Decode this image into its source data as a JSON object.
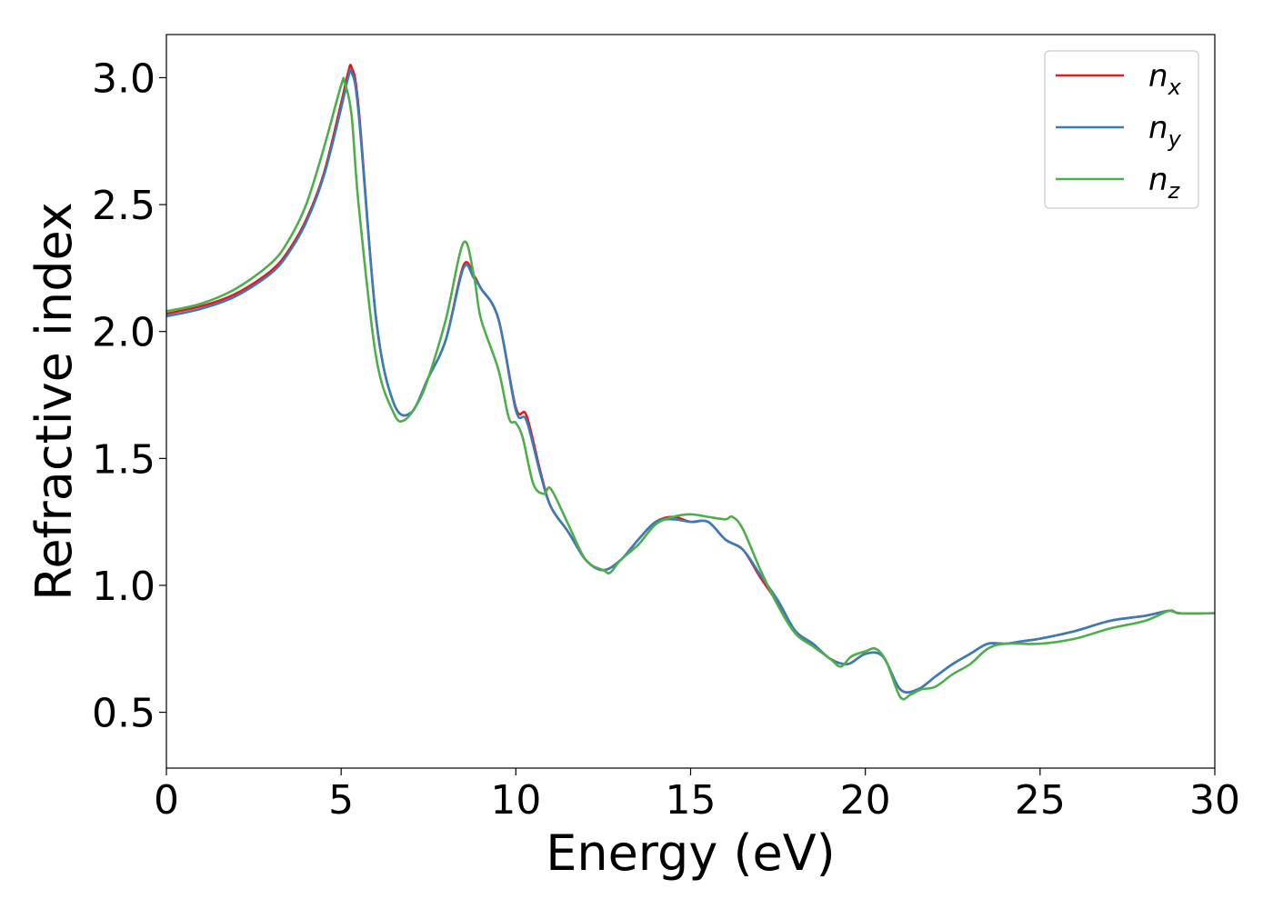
{
  "chart_data": {
    "type": "line",
    "xlabel": "Energy (eV)",
    "ylabel": "Refractive index",
    "xlim": [
      0,
      30
    ],
    "ylim": [
      0.28,
      3.17
    ],
    "xticks": [
      0,
      5,
      10,
      15,
      20,
      25,
      30
    ],
    "xtick_labels": [
      "0",
      "5",
      "10",
      "15",
      "20",
      "25",
      "30"
    ],
    "yticks": [
      0.5,
      1.0,
      1.5,
      2.0,
      2.5,
      3.0
    ],
    "ytick_labels": [
      "0.5",
      "1.0",
      "1.5",
      "2.0",
      "2.5",
      "3.0"
    ],
    "grid": false,
    "legend_position": "top-right",
    "series": [
      {
        "name": "n",
        "subscript": "x",
        "color": "#e41a1c",
        "x": [
          0,
          1,
          2,
          3,
          3.5,
          4,
          4.5,
          5,
          5.2,
          5.3,
          5.5,
          6,
          6.5,
          7,
          7.5,
          8,
          8.5,
          8.8,
          9,
          9.5,
          10,
          10.3,
          10.7,
          11,
          11.5,
          12,
          12.5,
          13,
          13.5,
          14,
          14.5,
          15,
          15.5,
          16,
          16.5,
          17,
          17.5,
          18,
          18.5,
          19,
          19.5,
          20,
          20.5,
          21,
          21.5,
          22,
          22.5,
          23,
          23.5,
          24,
          24.5,
          25,
          26,
          27,
          28,
          28.7,
          29,
          30
        ],
        "y": [
          2.07,
          2.1,
          2.15,
          2.24,
          2.32,
          2.44,
          2.62,
          2.9,
          3.02,
          3.04,
          2.88,
          2.05,
          1.72,
          1.68,
          1.82,
          1.97,
          2.26,
          2.22,
          2.17,
          2.05,
          1.7,
          1.67,
          1.45,
          1.31,
          1.21,
          1.1,
          1.06,
          1.1,
          1.18,
          1.25,
          1.27,
          1.25,
          1.25,
          1.18,
          1.14,
          1.03,
          0.93,
          0.82,
          0.77,
          0.71,
          0.69,
          0.73,
          0.72,
          0.59,
          0.59,
          0.64,
          0.69,
          0.73,
          0.77,
          0.77,
          0.78,
          0.79,
          0.82,
          0.86,
          0.88,
          0.9,
          0.89,
          0.89
        ]
      },
      {
        "name": "n",
        "subscript": "y",
        "color": "#377eb8",
        "x": [
          0,
          1,
          2,
          3,
          3.5,
          4,
          4.5,
          5,
          5.2,
          5.3,
          5.5,
          6,
          6.5,
          7,
          7.5,
          8,
          8.5,
          8.8,
          9,
          9.5,
          10,
          10.3,
          10.7,
          11,
          11.5,
          12,
          12.5,
          13,
          13.5,
          14,
          14.5,
          15,
          15.5,
          16,
          16.5,
          17,
          17.5,
          18,
          18.5,
          19,
          19.5,
          20,
          20.5,
          21,
          21.5,
          22,
          22.5,
          23,
          23.5,
          24,
          24.5,
          25,
          26,
          27,
          28,
          28.7,
          29,
          30
        ],
        "y": [
          2.06,
          2.09,
          2.14,
          2.23,
          2.31,
          2.43,
          2.61,
          2.88,
          3.0,
          3.02,
          2.86,
          2.05,
          1.72,
          1.68,
          1.82,
          1.97,
          2.25,
          2.21,
          2.17,
          2.05,
          1.69,
          1.65,
          1.44,
          1.31,
          1.21,
          1.1,
          1.06,
          1.1,
          1.18,
          1.25,
          1.26,
          1.25,
          1.25,
          1.18,
          1.14,
          1.04,
          0.94,
          0.82,
          0.77,
          0.71,
          0.69,
          0.73,
          0.72,
          0.59,
          0.59,
          0.64,
          0.69,
          0.73,
          0.77,
          0.77,
          0.78,
          0.79,
          0.82,
          0.86,
          0.88,
          0.9,
          0.89,
          0.89
        ]
      },
      {
        "name": "n",
        "subscript": "z",
        "color": "#4daf4a",
        "x": [
          0,
          1,
          2,
          3,
          3.5,
          4,
          4.5,
          5,
          5.1,
          5.3,
          5.5,
          6,
          6.5,
          6.8,
          7.2,
          7.5,
          8,
          8.5,
          8.8,
          9,
          9.5,
          9.8,
          10,
          10.2,
          10.5,
          10.8,
          11,
          11.5,
          12,
          12.5,
          12.7,
          13,
          13.5,
          14,
          14.5,
          15,
          15.5,
          16,
          16.2,
          16.5,
          17,
          17.5,
          18,
          18.5,
          19,
          19.3,
          19.6,
          20,
          20.3,
          20.6,
          21,
          21.3,
          21.6,
          22,
          22.5,
          23,
          23.5,
          24,
          25,
          26,
          27,
          28,
          28.7,
          29,
          30
        ],
        "y": [
          2.08,
          2.11,
          2.17,
          2.27,
          2.36,
          2.5,
          2.72,
          2.97,
          2.98,
          2.85,
          2.5,
          1.9,
          1.68,
          1.65,
          1.72,
          1.82,
          2.05,
          2.35,
          2.22,
          2.05,
          1.85,
          1.66,
          1.64,
          1.58,
          1.4,
          1.36,
          1.38,
          1.24,
          1.1,
          1.06,
          1.05,
          1.1,
          1.16,
          1.24,
          1.27,
          1.28,
          1.27,
          1.26,
          1.27,
          1.22,
          1.06,
          0.92,
          0.81,
          0.76,
          0.71,
          0.68,
          0.72,
          0.74,
          0.75,
          0.7,
          0.56,
          0.57,
          0.59,
          0.6,
          0.65,
          0.69,
          0.75,
          0.77,
          0.77,
          0.79,
          0.83,
          0.86,
          0.9,
          0.89,
          0.89
        ]
      }
    ]
  }
}
